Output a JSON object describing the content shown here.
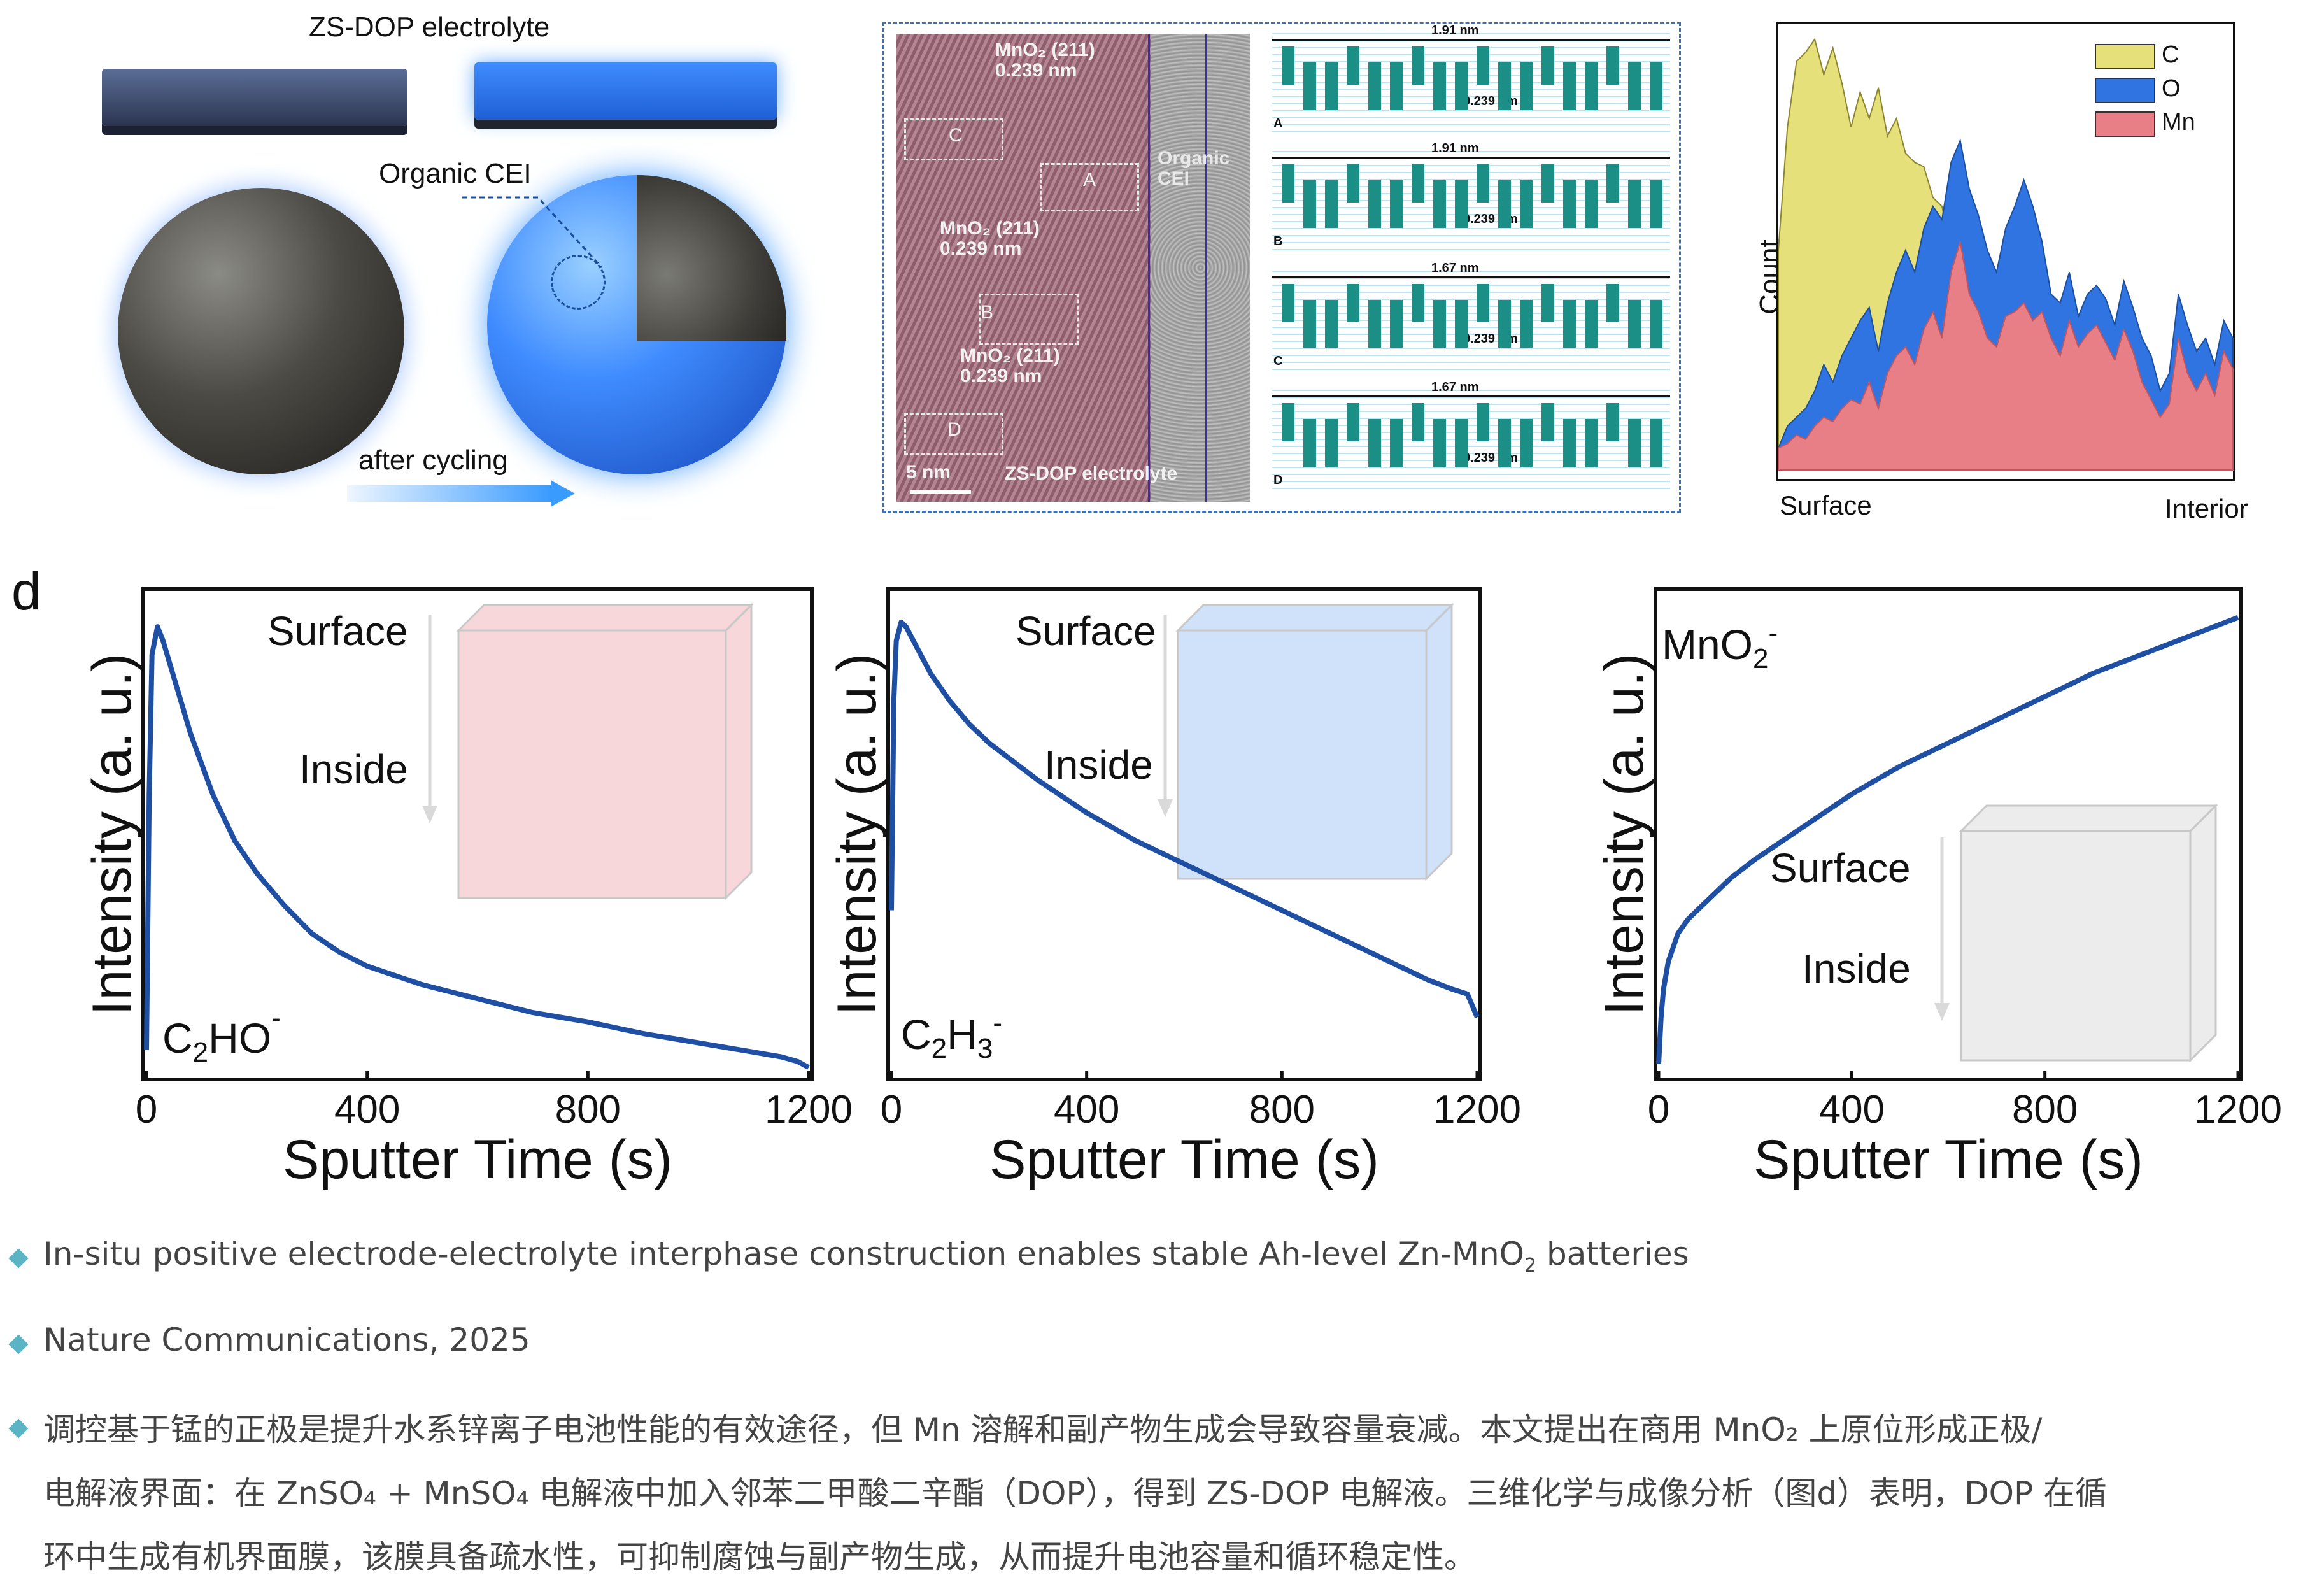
{
  "panel_a": {
    "title": "ZS-DOP electrolyte",
    "cei_label": "Organic CEI",
    "cycling_label": "after cycling"
  },
  "panel_b": {
    "tem_labels": [
      {
        "text": "MnO₂ (211)\n0.239 nm"
      },
      {
        "text": "MnO₂ (211)\n0.239 nm"
      },
      {
        "text": "MnO₂ (211)\n0.239 nm"
      }
    ],
    "organic_cei": "Organic\nCEI",
    "scale": "5 nm",
    "electrolyte": "ZS-DOP electrolyte",
    "regions": [
      "C",
      "A",
      "B",
      "D"
    ],
    "profiles": [
      {
        "span": "1.91 nm",
        "spacing": "0.239 nm",
        "letter": "A"
      },
      {
        "span": "1.91 nm",
        "spacing": "0.239 nm",
        "letter": "B"
      },
      {
        "span": "1.67 nm",
        "spacing": "0.239 nm",
        "letter": "C"
      },
      {
        "span": "1.67 nm",
        "spacing": "0.239 nm",
        "letter": "D"
      }
    ]
  },
  "panel_d_letter": "d",
  "chart_data": [
    {
      "type": "area",
      "ylabel": "Count",
      "x_left_label": "Surface",
      "x_right_label": "Interior",
      "legend": [
        "C",
        "O",
        "Mn"
      ],
      "colors": {
        "C": "#e6e07a",
        "O": "#2f74e0",
        "Mn": "#e87e86"
      },
      "x": [
        0,
        2,
        4,
        6,
        8,
        10,
        12,
        14,
        16,
        18,
        20,
        22,
        24,
        26,
        28,
        30,
        32,
        34,
        36,
        38,
        40,
        42,
        44,
        46,
        48,
        50,
        52,
        54,
        56,
        58,
        60,
        62,
        64,
        66,
        68,
        70,
        72,
        74,
        76,
        78,
        80,
        82,
        84,
        86,
        88,
        90,
        92,
        94,
        96,
        98,
        100
      ],
      "series": [
        {
          "name": "C",
          "values": [
            0.5,
            0.78,
            0.93,
            0.95,
            0.98,
            0.9,
            0.96,
            0.88,
            0.78,
            0.86,
            0.8,
            0.87,
            0.76,
            0.8,
            0.72,
            0.7,
            0.69,
            0.62,
            0.6,
            0.5,
            0.4,
            0.33,
            0.28,
            0.24,
            0.2,
            0.16,
            0.14,
            0.13,
            0.12,
            0.11,
            0.11,
            0.1,
            0.1,
            0.1,
            0.1,
            0.1,
            0.1,
            0.1,
            0.1,
            0.09,
            0.09,
            0.09,
            0.09,
            0.09,
            0.09,
            0.09,
            0.09,
            0.09,
            0.09,
            0.09,
            0.09
          ]
        },
        {
          "name": "O",
          "values": [
            0.05,
            0.1,
            0.12,
            0.14,
            0.18,
            0.24,
            0.2,
            0.26,
            0.3,
            0.34,
            0.37,
            0.27,
            0.38,
            0.45,
            0.5,
            0.45,
            0.55,
            0.6,
            0.57,
            0.7,
            0.75,
            0.64,
            0.58,
            0.5,
            0.45,
            0.55,
            0.6,
            0.66,
            0.6,
            0.52,
            0.4,
            0.38,
            0.45,
            0.35,
            0.4,
            0.42,
            0.39,
            0.33,
            0.43,
            0.37,
            0.3,
            0.26,
            0.18,
            0.22,
            0.4,
            0.33,
            0.27,
            0.3,
            0.24,
            0.34,
            0.3
          ]
        },
        {
          "name": "Mn",
          "values": [
            0.05,
            0.06,
            0.08,
            0.07,
            0.1,
            0.12,
            0.11,
            0.14,
            0.16,
            0.15,
            0.2,
            0.14,
            0.22,
            0.26,
            0.28,
            0.24,
            0.32,
            0.36,
            0.3,
            0.45,
            0.52,
            0.4,
            0.36,
            0.3,
            0.28,
            0.35,
            0.36,
            0.38,
            0.34,
            0.36,
            0.3,
            0.26,
            0.34,
            0.28,
            0.31,
            0.33,
            0.29,
            0.25,
            0.32,
            0.27,
            0.2,
            0.16,
            0.12,
            0.15,
            0.3,
            0.22,
            0.18,
            0.22,
            0.17,
            0.27,
            0.23
          ]
        }
      ]
    },
    {
      "type": "line",
      "xlabel": "Sputter Time (s)",
      "ylabel": "Intensity (a. u.)",
      "species_html": [
        "C",
        "2",
        "HO",
        "-"
      ],
      "inset_surface": "Surface",
      "inset_inside": "Inside",
      "xlim": [
        0,
        1200
      ],
      "xticks": [
        0,
        400,
        800,
        1200
      ],
      "x": [
        0,
        5,
        10,
        20,
        30,
        50,
        80,
        120,
        160,
        200,
        250,
        300,
        350,
        400,
        500,
        600,
        700,
        800,
        900,
        1000,
        1100,
        1150,
        1180,
        1200
      ],
      "y": [
        0.05,
        0.6,
        0.9,
        0.96,
        0.93,
        0.85,
        0.73,
        0.6,
        0.5,
        0.43,
        0.36,
        0.3,
        0.26,
        0.23,
        0.19,
        0.16,
        0.13,
        0.11,
        0.085,
        0.065,
        0.045,
        0.035,
        0.025,
        0.012
      ]
    },
    {
      "type": "line",
      "xlabel": "Sputter Time (s)",
      "ylabel": "Intensity (a. u.)",
      "species_html": [
        "C",
        "2",
        "H",
        "3",
        "-"
      ],
      "inset_surface": "Surface",
      "inset_inside": "Inside",
      "xlim": [
        0,
        1200
      ],
      "xticks": [
        0,
        400,
        800,
        1200
      ],
      "x": [
        0,
        5,
        10,
        20,
        30,
        50,
        80,
        120,
        160,
        200,
        300,
        400,
        500,
        600,
        700,
        800,
        900,
        1000,
        1100,
        1150,
        1180,
        1200
      ],
      "y": [
        0.35,
        0.8,
        0.93,
        0.97,
        0.96,
        0.92,
        0.86,
        0.8,
        0.75,
        0.71,
        0.63,
        0.56,
        0.5,
        0.45,
        0.4,
        0.35,
        0.3,
        0.25,
        0.2,
        0.18,
        0.17,
        0.12
      ]
    },
    {
      "type": "line",
      "xlabel": "Sputter Time (s)",
      "ylabel": "Intensity (a. u.)",
      "species_html": [
        "MnO",
        "2",
        "-"
      ],
      "inset_surface": "Surface",
      "inset_inside": "Inside",
      "xlim": [
        0,
        1200
      ],
      "xticks": [
        0,
        400,
        800,
        1200
      ],
      "x": [
        0,
        5,
        10,
        20,
        40,
        60,
        100,
        150,
        200,
        300,
        400,
        500,
        600,
        700,
        800,
        900,
        1000,
        1100,
        1200
      ],
      "y": [
        0.02,
        0.12,
        0.18,
        0.24,
        0.3,
        0.33,
        0.37,
        0.42,
        0.46,
        0.53,
        0.6,
        0.66,
        0.71,
        0.76,
        0.81,
        0.86,
        0.9,
        0.94,
        0.98
      ]
    }
  ],
  "captions": {
    "title_main": "In-situ positive electrode-electrolyte interphase construction enables stable Ah-level Zn-MnO",
    "title_sub": "2",
    "title_tail": " batteries",
    "journal": "Nature Communications, 2025",
    "summary_line1": "调控基于锰的正极是提升水系锌离子电池性能的有效途径，但 Mn 溶解和副产物生成会导致容量衰减。本文提出在商用 MnO₂ 上原位形成正极/",
    "summary_line2": "电解液界面：在 ZnSO₄ + MnSO₄ 电解液中加入邻苯二甲酸二辛酯（DOP），得到 ZS-DOP 电解液。三维化学与成像分析（图d）表明，DOP 在循",
    "summary_line3": "环中生成有机界面膜，该膜具备疏水性，可抑制腐蚀与副产物生成，从而提升电池容量和循环稳定性。"
  }
}
